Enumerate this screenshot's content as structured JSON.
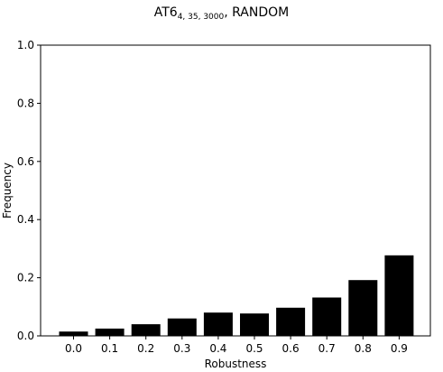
{
  "chart_data": {
    "type": "bar",
    "title": {
      "main": "AT6",
      "subscript": "4, 35, 3000",
      "suffix": ", RANDOM"
    },
    "xlabel": "Robustness",
    "ylabel": "Frequency",
    "categories": [
      "0.0",
      "0.1",
      "0.2",
      "0.3",
      "0.4",
      "0.5",
      "0.6",
      "0.7",
      "0.8",
      "0.9"
    ],
    "values": [
      0.015,
      0.025,
      0.04,
      0.06,
      0.08,
      0.077,
      0.097,
      0.132,
      0.192,
      0.277
    ],
    "ylim": [
      0,
      1.0
    ],
    "yticks": [
      "0.0",
      "0.2",
      "0.4",
      "0.6",
      "0.8",
      "1.0"
    ],
    "bar_color": "#000000",
    "grid": false,
    "legend": "none"
  }
}
